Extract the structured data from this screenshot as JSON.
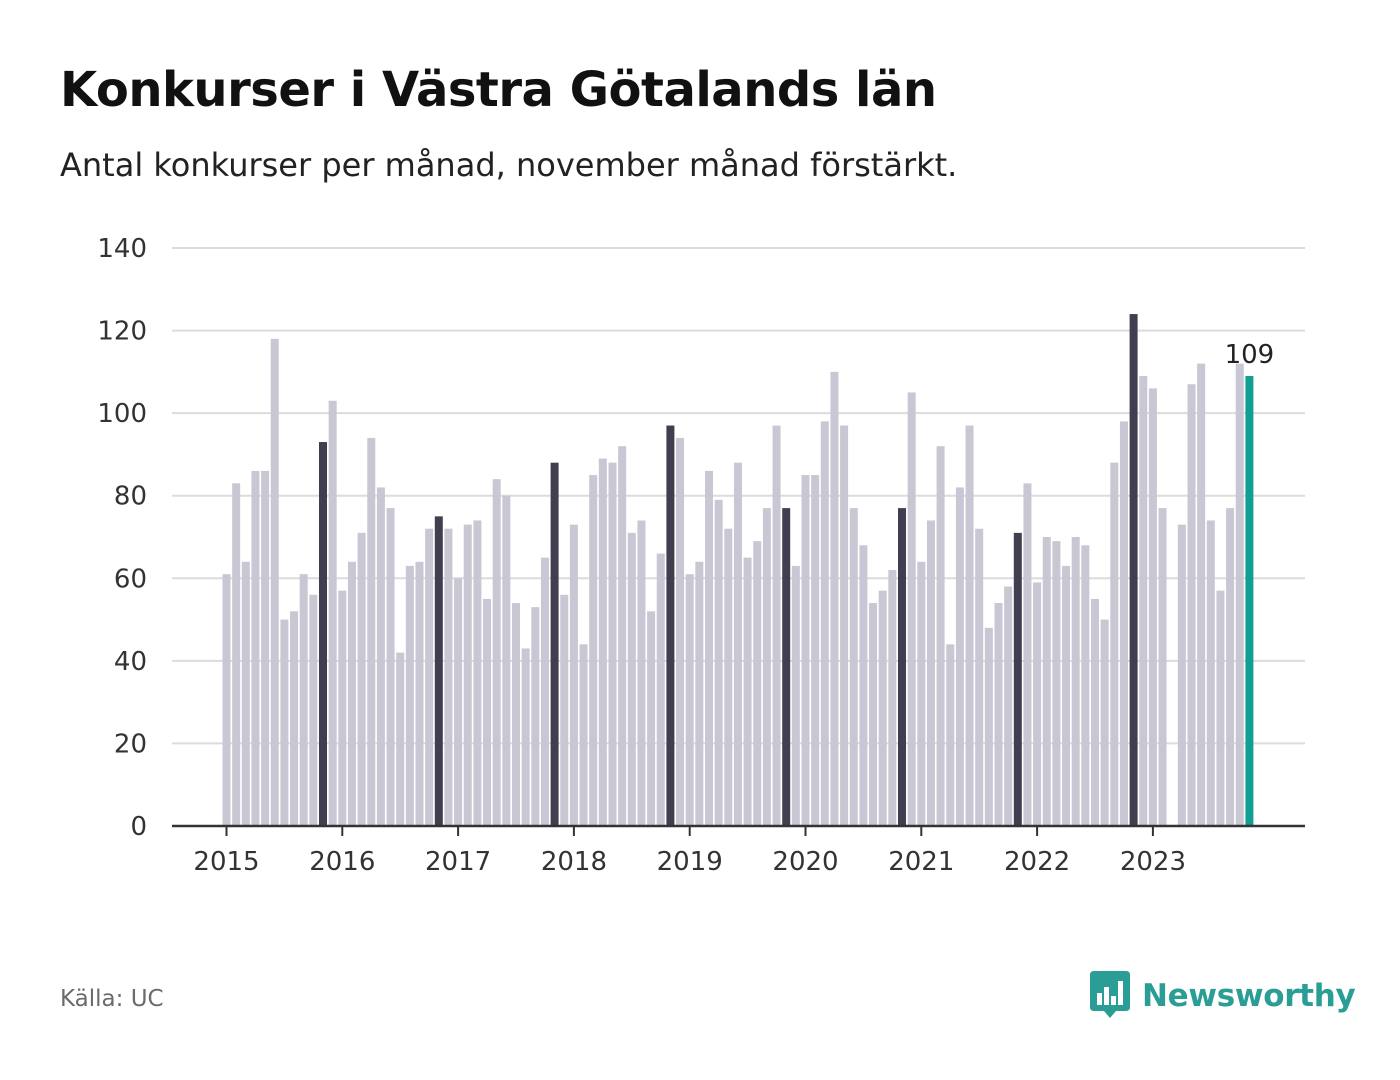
{
  "header": {
    "title": "Konkurser i Västra Götalands län",
    "subtitle": "Antal konkurser per månad, november månad förstärkt."
  },
  "footer": {
    "source": "Källa: UC",
    "brand": "Newsworthy"
  },
  "colors": {
    "bar_default": "#c8c7d3",
    "bar_november": "#403f4f",
    "bar_latest": "#119e93",
    "grid": "#dcdcdc",
    "axis": "#333333",
    "brand": "#2a9d94"
  },
  "icons": {
    "brand_logo": "bar-chart-speech-bubble-icon"
  },
  "chart_data": {
    "type": "bar",
    "x_ticks": [
      "2015",
      "2016",
      "2017",
      "2018",
      "2019",
      "2020",
      "2021",
      "2022",
      "2023"
    ],
    "y_ticks": [
      0,
      20,
      40,
      60,
      80,
      100,
      120,
      140
    ],
    "ylim": [
      0,
      140
    ],
    "start": "2015-01",
    "highlight_month": "November",
    "latest_label": "109",
    "values": [
      61,
      83,
      64,
      86,
      86,
      118,
      50,
      52,
      61,
      56,
      93,
      103,
      57,
      64,
      71,
      94,
      82,
      77,
      42,
      63,
      64,
      72,
      75,
      72,
      60,
      73,
      74,
      55,
      84,
      80,
      54,
      43,
      53,
      65,
      88,
      56,
      73,
      44,
      85,
      89,
      88,
      92,
      71,
      74,
      52,
      66,
      97,
      94,
      61,
      64,
      86,
      79,
      72,
      88,
      65,
      69,
      77,
      97,
      77,
      63,
      85,
      85,
      98,
      110,
      97,
      77,
      68,
      54,
      57,
      62,
      77,
      105,
      64,
      74,
      92,
      44,
      82,
      97,
      72,
      48,
      54,
      58,
      71,
      83,
      59,
      70,
      69,
      63,
      70,
      68,
      55,
      50,
      88,
      98,
      124,
      109,
      106,
      77,
      0,
      73,
      107,
      112,
      74,
      57,
      77,
      112,
      109
    ],
    "grid": true,
    "legend": "none"
  }
}
